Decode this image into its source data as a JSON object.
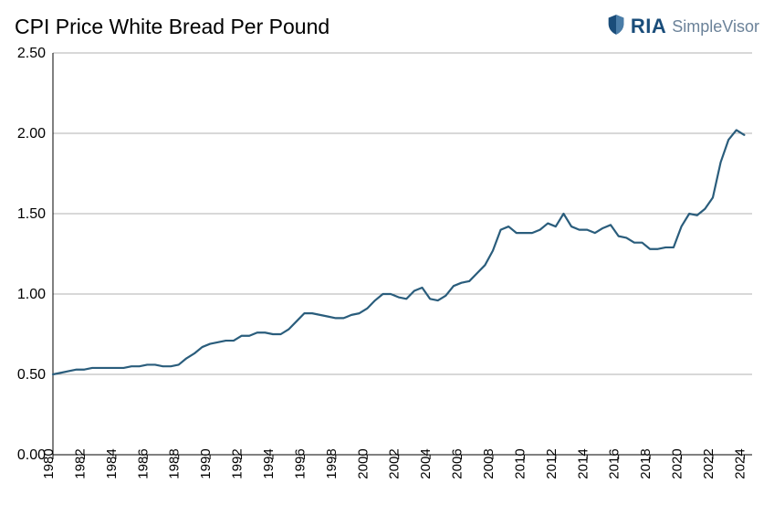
{
  "header": {
    "title": "CPI Price White Bread Per Pound",
    "brand_primary": "RIA",
    "brand_secondary": "SimpleVisor"
  },
  "chart": {
    "type": "line",
    "line_color": "#2a5d7c",
    "background_color": "#ffffff",
    "grid_color": "#b0b0b0",
    "axis_color": "#000000",
    "text_color": "#000000",
    "title_fontsize": 23,
    "tick_fontsize": 16,
    "line_width": 2.2,
    "ylim": [
      0.0,
      2.5
    ],
    "ytick_step": 0.5,
    "yticks": [
      "0.00",
      "0.50",
      "1.00",
      "1.50",
      "2.00",
      "2.50"
    ],
    "xlim": [
      1980,
      2024.5
    ],
    "xtick_step": 2,
    "xticks": [
      "1980",
      "1982",
      "1984",
      "1986",
      "1988",
      "1990",
      "1992",
      "1994",
      "1996",
      "1998",
      "2000",
      "2002",
      "2004",
      "2006",
      "2008",
      "2010",
      "2012",
      "2014",
      "2016",
      "2018",
      "2020",
      "2022",
      "2024"
    ],
    "x_tick_rotation": -90,
    "series": {
      "x": [
        1980,
        1980.5,
        1981,
        1981.5,
        1982,
        1982.5,
        1983,
        1983.5,
        1984,
        1984.5,
        1985,
        1985.5,
        1986,
        1986.5,
        1987,
        1987.5,
        1988,
        1988.5,
        1989,
        1989.5,
        1990,
        1990.5,
        1991,
        1991.5,
        1992,
        1992.5,
        1993,
        1993.5,
        1994,
        1994.5,
        1995,
        1995.5,
        1996,
        1996.5,
        1997,
        1997.5,
        1998,
        1998.5,
        1999,
        1999.5,
        2000,
        2000.5,
        2001,
        2001.5,
        2002,
        2002.5,
        2003,
        2003.5,
        2004,
        2004.5,
        2005,
        2005.5,
        2006,
        2006.5,
        2007,
        2007.5,
        2008,
        2008.5,
        2009,
        2009.5,
        2010,
        2010.5,
        2011,
        2011.5,
        2012,
        2012.5,
        2013,
        2013.5,
        2014,
        2014.5,
        2015,
        2015.5,
        2016,
        2016.5,
        2017,
        2017.5,
        2018,
        2018.5,
        2019,
        2019.5,
        2020,
        2020.5,
        2021,
        2021.5,
        2022,
        2022.5,
        2023,
        2023.5,
        2024
      ],
      "y": [
        0.5,
        0.51,
        0.52,
        0.53,
        0.53,
        0.54,
        0.54,
        0.54,
        0.54,
        0.54,
        0.55,
        0.55,
        0.56,
        0.56,
        0.55,
        0.55,
        0.56,
        0.6,
        0.63,
        0.67,
        0.69,
        0.7,
        0.71,
        0.71,
        0.74,
        0.74,
        0.76,
        0.76,
        0.75,
        0.75,
        0.78,
        0.83,
        0.88,
        0.88,
        0.87,
        0.86,
        0.85,
        0.85,
        0.87,
        0.88,
        0.91,
        0.96,
        1.0,
        1.0,
        0.98,
        0.97,
        1.02,
        1.04,
        0.97,
        0.96,
        0.99,
        1.05,
        1.07,
        1.08,
        1.13,
        1.18,
        1.27,
        1.4,
        1.42,
        1.38,
        1.38,
        1.38,
        1.4,
        1.44,
        1.42,
        1.5,
        1.42,
        1.4,
        1.4,
        1.38,
        1.41,
        1.43,
        1.36,
        1.35,
        1.32,
        1.32,
        1.28,
        1.28,
        1.29,
        1.29,
        1.42,
        1.5,
        1.49,
        1.53,
        1.6,
        1.82,
        1.96,
        2.02,
        1.99
      ]
    }
  }
}
